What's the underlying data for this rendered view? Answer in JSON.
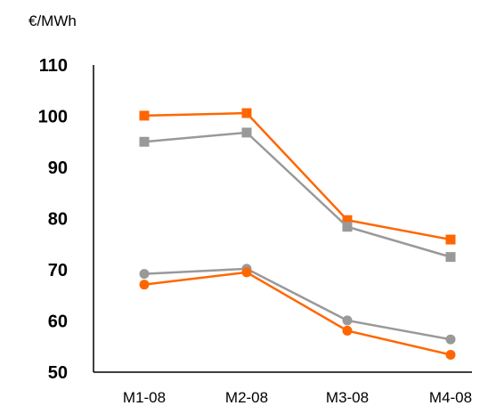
{
  "chart_data": {
    "type": "line",
    "unit_label": "€/MWh",
    "categories": [
      "M1-08",
      "M2-08",
      "M3-08",
      "M4-08"
    ],
    "ylim": [
      50,
      110
    ],
    "yticks": [
      50,
      60,
      70,
      80,
      90,
      100,
      110
    ],
    "grid": false,
    "series": [
      {
        "marker": "square",
        "color": "#FF6600",
        "values": [
          100.1,
          100.6,
          79.7,
          75.9
        ]
      },
      {
        "marker": "square",
        "color": "#999999",
        "values": [
          95.0,
          96.8,
          78.4,
          72.5
        ]
      },
      {
        "marker": "circle",
        "color": "#999999",
        "values": [
          69.2,
          70.2,
          60.1,
          56.4
        ]
      },
      {
        "marker": "circle",
        "color": "#FF6600",
        "values": [
          67.1,
          69.5,
          58.1,
          53.4
        ]
      }
    ]
  }
}
